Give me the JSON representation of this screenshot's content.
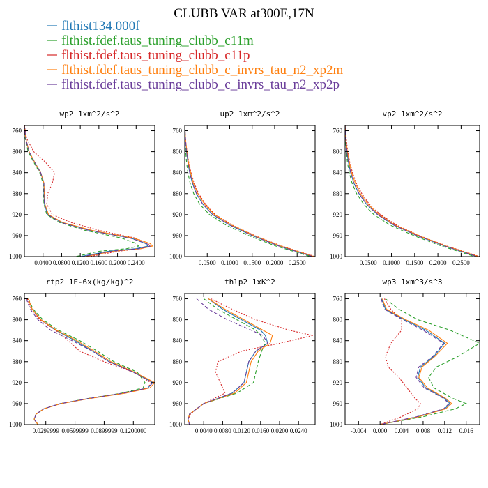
{
  "figure": {
    "title": "CLUBB VAR at300E,17N"
  },
  "legend": [
    {
      "label": "flthist134.000f",
      "color": "#1f77b4"
    },
    {
      "label": "flthist.fdef.taus_tuning_clubb_c11m",
      "color": "#2ca02c"
    },
    {
      "label": "flthist.fdef.taus_tuning_clubb_c11p",
      "color": "#d62728"
    },
    {
      "label": "flthist.fdef.taus_tuning_clubb_c_invrs_tau_n2_xp2m",
      "color": "#ff7f0e"
    },
    {
      "label": "flthist.fdef.taus_tuning_clubb_c_invrs_tau_n2_xp2p",
      "color": "#6a3d9a"
    }
  ],
  "chart_data": [
    {
      "type": "line",
      "title": "wp2  1xm^2/s^2",
      "ylim": [
        1000,
        750
      ],
      "xlim": [
        0,
        0.28
      ],
      "y_ticks": [
        760,
        800,
        840,
        880,
        920,
        960,
        1000
      ],
      "x_ticks": [
        0.04,
        0.08,
        0.12,
        0.16,
        0.2,
        0.24
      ],
      "x_tick_labels": [
        "0.0400",
        "0.0800",
        "0.1200",
        "0.1600",
        "0.2000",
        "0.2400"
      ],
      "y": [
        750,
        775,
        800,
        820,
        840,
        860,
        880,
        900,
        920,
        935,
        950,
        965,
        975,
        980,
        985,
        990,
        1000
      ],
      "series": [
        {
          "color": "#1f77b4",
          "style": "solid",
          "x": [
            0,
            0.003,
            0.01,
            0.022,
            0.035,
            0.042,
            0.042,
            0.043,
            0.05,
            0.08,
            0.14,
            0.23,
            0.26,
            0.265,
            0.24,
            0.18,
            0.12
          ]
        },
        {
          "color": "#2ca02c",
          "style": "dashed",
          "x": [
            0,
            0.002,
            0.008,
            0.02,
            0.033,
            0.04,
            0.041,
            0.042,
            0.048,
            0.075,
            0.13,
            0.21,
            0.24,
            0.245,
            0.22,
            0.16,
            0.11
          ]
        },
        {
          "color": "#d62728",
          "style": "dotted",
          "x": [
            0,
            0.005,
            0.02,
            0.045,
            0.065,
            0.06,
            0.05,
            0.048,
            0.06,
            0.1,
            0.16,
            0.24,
            0.265,
            0.27,
            0.25,
            0.2,
            0.14
          ]
        },
        {
          "color": "#ff7f0e",
          "style": "solid",
          "x": [
            0,
            0.003,
            0.01,
            0.022,
            0.035,
            0.042,
            0.043,
            0.044,
            0.052,
            0.082,
            0.145,
            0.235,
            0.27,
            0.275,
            0.25,
            0.19,
            0.13
          ]
        },
        {
          "color": "#6a3d9a",
          "style": "dashed",
          "x": [
            0,
            0.003,
            0.01,
            0.022,
            0.035,
            0.042,
            0.042,
            0.043,
            0.05,
            0.079,
            0.138,
            0.228,
            0.262,
            0.27,
            0.248,
            0.185,
            0.125
          ]
        }
      ]
    },
    {
      "type": "line",
      "title": "up2  1xm^2/s^2",
      "ylim": [
        1000,
        750
      ],
      "xlim": [
        0,
        0.29
      ],
      "y_ticks": [
        760,
        800,
        840,
        880,
        920,
        960,
        1000
      ],
      "x_ticks": [
        0.05,
        0.1,
        0.15,
        0.2,
        0.25
      ],
      "x_tick_labels": [
        "0.0500",
        "0.1000",
        "0.1500",
        "0.2000",
        "0.2500"
      ],
      "y": [
        750,
        780,
        800,
        820,
        840,
        860,
        880,
        900,
        920,
        940,
        960,
        980,
        1000
      ],
      "series": [
        {
          "color": "#1f77b4",
          "style": "solid",
          "x": [
            0,
            0.002,
            0.004,
            0.007,
            0.011,
            0.017,
            0.026,
            0.04,
            0.062,
            0.1,
            0.15,
            0.21,
            0.285
          ]
        },
        {
          "color": "#2ca02c",
          "style": "dashed",
          "x": [
            0,
            0.001,
            0.002,
            0.004,
            0.007,
            0.012,
            0.02,
            0.033,
            0.055,
            0.092,
            0.142,
            0.203,
            0.28
          ]
        },
        {
          "color": "#d62728",
          "style": "dotted",
          "x": [
            0,
            0.002,
            0.005,
            0.009,
            0.014,
            0.021,
            0.031,
            0.046,
            0.068,
            0.106,
            0.156,
            0.216,
            0.29
          ]
        },
        {
          "color": "#ff7f0e",
          "style": "solid",
          "x": [
            0,
            0.002,
            0.005,
            0.008,
            0.013,
            0.019,
            0.029,
            0.044,
            0.066,
            0.104,
            0.154,
            0.214,
            0.288
          ]
        },
        {
          "color": "#6a3d9a",
          "style": "dashed",
          "x": [
            0,
            0.002,
            0.004,
            0.007,
            0.011,
            0.017,
            0.026,
            0.04,
            0.062,
            0.1,
            0.15,
            0.21,
            0.285
          ]
        }
      ]
    },
    {
      "type": "line",
      "title": "vp2  1xm^2/s^2",
      "ylim": [
        1000,
        750
      ],
      "xlim": [
        0,
        0.29
      ],
      "y_ticks": [
        760,
        800,
        840,
        880,
        920,
        960,
        1000
      ],
      "x_ticks": [
        0.05,
        0.1,
        0.15,
        0.2,
        0.25
      ],
      "x_tick_labels": [
        "0.0500",
        "0.1000",
        "0.1500",
        "0.2000",
        "0.2500"
      ],
      "y": [
        750,
        780,
        800,
        820,
        840,
        860,
        880,
        900,
        920,
        940,
        960,
        980,
        1000
      ],
      "series": [
        {
          "color": "#1f77b4",
          "style": "solid",
          "x": [
            0,
            0.002,
            0.004,
            0.007,
            0.012,
            0.019,
            0.03,
            0.046,
            0.07,
            0.105,
            0.155,
            0.215,
            0.285
          ]
        },
        {
          "color": "#2ca02c",
          "style": "dashed",
          "x": [
            0,
            0.001,
            0.003,
            0.005,
            0.009,
            0.015,
            0.025,
            0.04,
            0.062,
            0.097,
            0.148,
            0.208,
            0.28
          ]
        },
        {
          "color": "#d62728",
          "style": "dotted",
          "x": [
            0,
            0.003,
            0.006,
            0.01,
            0.016,
            0.024,
            0.036,
            0.052,
            0.076,
            0.111,
            0.16,
            0.22,
            0.29
          ]
        },
        {
          "color": "#ff7f0e",
          "style": "solid",
          "x": [
            0,
            0.002,
            0.005,
            0.009,
            0.014,
            0.022,
            0.033,
            0.049,
            0.073,
            0.108,
            0.158,
            0.218,
            0.288
          ]
        },
        {
          "color": "#6a3d9a",
          "style": "dashed",
          "x": [
            0,
            0.002,
            0.004,
            0.007,
            0.012,
            0.019,
            0.03,
            0.046,
            0.07,
            0.105,
            0.155,
            0.215,
            0.285
          ]
        }
      ]
    },
    {
      "type": "line",
      "title": "rtp2  1E-6x(kg/kg)^2",
      "ylim": [
        1000,
        750
      ],
      "xlim": [
        0.008,
        0.142
      ],
      "y_ticks": [
        760,
        800,
        840,
        880,
        920,
        960,
        1000
      ],
      "x_ticks": [
        0.03,
        0.06,
        0.09,
        0.12
      ],
      "x_tick_labels": [
        "0.0299999",
        "0.0599999",
        "0.0899999",
        "0.1200000"
      ],
      "y": [
        760,
        780,
        800,
        820,
        840,
        860,
        880,
        900,
        920,
        930,
        940,
        950,
        960,
        970,
        980,
        990,
        1000
      ],
      "series": [
        {
          "color": "#1f77b4",
          "style": "solid",
          "x": [
            0.012,
            0.016,
            0.025,
            0.04,
            0.06,
            0.078,
            0.095,
            0.12,
            0.14,
            0.135,
            0.11,
            0.075,
            0.045,
            0.028,
            0.02,
            0.018,
            0.022
          ]
        },
        {
          "color": "#2ca02c",
          "style": "dashed",
          "x": [
            0.012,
            0.017,
            0.027,
            0.043,
            0.065,
            0.083,
            0.1,
            0.124,
            0.132,
            0.13,
            0.108,
            0.074,
            0.045,
            0.028,
            0.02,
            0.018,
            0.022
          ]
        },
        {
          "color": "#d62728",
          "style": "dotted",
          "x": [
            0.011,
            0.015,
            0.024,
            0.04,
            0.053,
            0.065,
            0.09,
            0.12,
            0.138,
            0.135,
            0.11,
            0.075,
            0.045,
            0.028,
            0.02,
            0.018,
            0.022
          ]
        },
        {
          "color": "#ff7f0e",
          "style": "solid",
          "x": [
            0.012,
            0.016,
            0.025,
            0.041,
            0.062,
            0.08,
            0.097,
            0.121,
            0.142,
            0.137,
            0.112,
            0.076,
            0.046,
            0.028,
            0.02,
            0.018,
            0.022
          ]
        },
        {
          "color": "#6a3d9a",
          "style": "dashed",
          "x": [
            0.01,
            0.014,
            0.022,
            0.035,
            0.057,
            0.078,
            0.095,
            0.12,
            0.14,
            0.135,
            0.11,
            0.075,
            0.045,
            0.028,
            0.02,
            0.018,
            0.022
          ]
        }
      ]
    },
    {
      "type": "line",
      "title": "thlp2  1xK^2",
      "ylim": [
        1000,
        750
      ],
      "xlim": [
        0,
        0.0275
      ],
      "y_ticks": [
        760,
        800,
        840,
        880,
        920,
        960,
        1000
      ],
      "x_ticks": [
        0.004,
        0.008,
        0.012,
        0.016,
        0.02,
        0.024
      ],
      "x_tick_labels": [
        "0.0040",
        "0.0080",
        "0.0120",
        "0.0160",
        "0.0200",
        "0.0240"
      ],
      "y": [
        760,
        780,
        800,
        820,
        830,
        845,
        860,
        880,
        900,
        920,
        940,
        960,
        980,
        990,
        1000
      ],
      "series": [
        {
          "color": "#1f77b4",
          "style": "solid",
          "x": [
            0.005,
            0.008,
            0.012,
            0.016,
            0.017,
            0.0175,
            0.015,
            0.0135,
            0.013,
            0.0125,
            0.01,
            0.004,
            0.001,
            0.0007,
            0.001
          ]
        },
        {
          "color": "#2ca02c",
          "style": "dashed",
          "x": [
            0.004,
            0.007,
            0.011,
            0.015,
            0.016,
            0.017,
            0.0162,
            0.0155,
            0.015,
            0.0145,
            0.011,
            0.004,
            0.001,
            0.0007,
            0.001
          ]
        },
        {
          "color": "#d62728",
          "style": "dotted",
          "x": [
            0.0055,
            0.01,
            0.015,
            0.022,
            0.027,
            0.02,
            0.012,
            0.007,
            0.0065,
            0.0075,
            0.0085,
            0.004,
            0.0012,
            0.0007,
            0.001
          ]
        },
        {
          "color": "#ff7f0e",
          "style": "solid",
          "x": [
            0.005,
            0.0085,
            0.0125,
            0.0165,
            0.0185,
            0.018,
            0.0155,
            0.014,
            0.0135,
            0.013,
            0.0105,
            0.004,
            0.001,
            0.0007,
            0.001
          ]
        },
        {
          "color": "#6a3d9a",
          "style": "dashed",
          "x": [
            0.0025,
            0.005,
            0.009,
            0.014,
            0.0165,
            0.0175,
            0.015,
            0.0135,
            0.013,
            0.0125,
            0.01,
            0.004,
            0.001,
            0.0007,
            0.001
          ]
        }
      ]
    },
    {
      "type": "line",
      "title": "wp3  1xm^3/s^3",
      "ylim": [
        1000,
        750
      ],
      "xlim": [
        -0.0065,
        0.0185
      ],
      "y_ticks": [
        760,
        800,
        840,
        880,
        920,
        960,
        1000
      ],
      "x_ticks": [
        -0.004,
        0,
        0.004,
        0.008,
        0.012,
        0.016
      ],
      "x_tick_labels": [
        "-0.004",
        "0.000",
        "0.004",
        "0.008",
        "0.012",
        "0.016"
      ],
      "y": [
        760,
        780,
        800,
        820,
        845,
        870,
        890,
        910,
        930,
        950,
        960,
        970,
        985,
        1000
      ],
      "series": [
        {
          "color": "#1f77b4",
          "style": "solid",
          "x": [
            0.0003,
            0.001,
            0.0045,
            0.0085,
            0.012,
            0.01,
            0.0075,
            0.007,
            0.0085,
            0.012,
            0.013,
            0.012,
            0.007,
            0
          ]
        },
        {
          "color": "#2ca02c",
          "style": "dashed",
          "x": [
            0.001,
            0.0035,
            0.007,
            0.013,
            0.0185,
            0.0145,
            0.0105,
            0.009,
            0.01,
            0.0135,
            0.016,
            0.014,
            0.008,
            0
          ]
        },
        {
          "color": "#d62728",
          "style": "dotted",
          "x": [
            0.0008,
            0.002,
            0.004,
            0.004,
            0.002,
            0.001,
            0.0015,
            0.0035,
            0.005,
            0.0065,
            0.0075,
            0.007,
            0.004,
            0
          ]
        },
        {
          "color": "#ff7f0e",
          "style": "solid",
          "x": [
            0.0004,
            0.0012,
            0.0048,
            0.009,
            0.0125,
            0.0102,
            0.0078,
            0.0072,
            0.0088,
            0.0122,
            0.0133,
            0.0122,
            0.0072,
            0
          ]
        },
        {
          "color": "#6a3d9a",
          "style": "dashed",
          "x": [
            0.0002,
            0.0008,
            0.0042,
            0.008,
            0.0118,
            0.0098,
            0.0072,
            0.0067,
            0.0082,
            0.0118,
            0.0128,
            0.0118,
            0.0068,
            0
          ]
        }
      ]
    }
  ]
}
